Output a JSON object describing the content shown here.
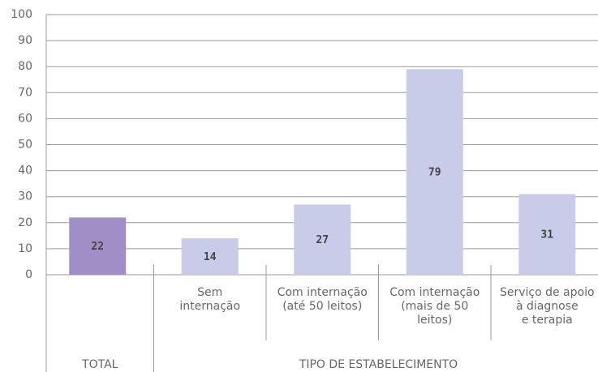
{
  "chart_data": {
    "type": "bar",
    "categories": [
      null,
      [
        "Sem",
        "internação"
      ],
      [
        "Com internação",
        "(até 50 leitos)"
      ],
      [
        "Com internação",
        "(mais de 50",
        "leitos)"
      ],
      [
        "Serviço de apoio",
        "à diagnose",
        "e terapia"
      ]
    ],
    "values": [
      22,
      14,
      27,
      79,
      31
    ],
    "colors": [
      "#a08fc6",
      "#c8cce8",
      "#c8cce8",
      "#c8cce8",
      "#c8cce8"
    ],
    "groups": [
      {
        "label": "TOTAL",
        "size": 1
      },
      {
        "label": "TIPO DE ESTABELECIMENTO",
        "size": 4
      }
    ],
    "ylim": [
      0,
      100
    ],
    "yticks": [
      0,
      10,
      20,
      30,
      40,
      50,
      60,
      70,
      80,
      90,
      100
    ],
    "grid": true
  }
}
